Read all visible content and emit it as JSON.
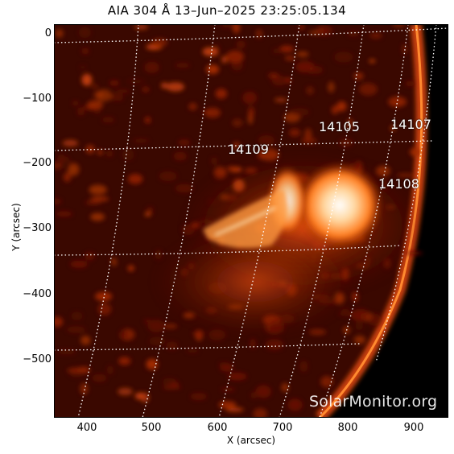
{
  "title": "AIA 304 Å 13–Jun–2025 23:25:05.134",
  "xlabel": "X (arcsec)",
  "ylabel": "Y (arcsec)",
  "x_ticks": [
    "400",
    "500",
    "600",
    "700",
    "800",
    "900"
  ],
  "y_ticks": [
    "0",
    "−100",
    "−200",
    "−300",
    "−400",
    "−500"
  ],
  "active_regions": [
    "14105",
    "14107",
    "14109",
    "14108"
  ],
  "watermark": "SolarMonitor.org",
  "colors": {
    "hot": "#ffffff",
    "mid": "#ff7a1a",
    "low": "#8a1a00",
    "background": "#000000"
  }
}
